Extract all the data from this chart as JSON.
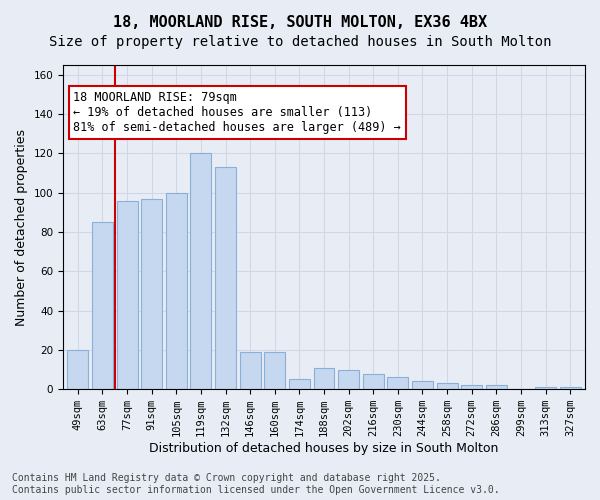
{
  "title_line1": "18, MOORLAND RISE, SOUTH MOLTON, EX36 4BX",
  "title_line2": "Size of property relative to detached houses in South Molton",
  "xlabel": "Distribution of detached houses by size in South Molton",
  "ylabel": "Number of detached properties",
  "categories": [
    "49sqm",
    "63sqm",
    "77sqm",
    "91sqm",
    "105sqm",
    "119sqm",
    "132sqm",
    "146sqm",
    "160sqm",
    "174sqm",
    "188sqm",
    "202sqm",
    "216sqm",
    "230sqm",
    "244sqm",
    "258sqm",
    "272sqm",
    "286sqm",
    "299sqm",
    "313sqm",
    "327sqm"
  ],
  "values": [
    20,
    85,
    96,
    97,
    100,
    120,
    113,
    19,
    19,
    5,
    11,
    10,
    8,
    6,
    4,
    3,
    2,
    2,
    0,
    1,
    1
  ],
  "bar_color": "#c5d8f0",
  "bar_edge_color": "#8ab0d8",
  "vline_x": 1.5,
  "vline_color": "#cc0000",
  "annotation_text": "18 MOORLAND RISE: 79sqm\n← 19% of detached houses are smaller (113)\n81% of semi-detached houses are larger (489) →",
  "annotation_box_color": "#ffffff",
  "annotation_box_edgecolor": "#cc0000",
  "ylim": [
    0,
    165
  ],
  "yticks": [
    0,
    20,
    40,
    60,
    80,
    100,
    120,
    140,
    160
  ],
  "grid_color": "#d0d8e8",
  "bg_color": "#e8edf5",
  "plot_bg_color": "#e8edf5",
  "footer_line1": "Contains HM Land Registry data © Crown copyright and database right 2025.",
  "footer_line2": "Contains public sector information licensed under the Open Government Licence v3.0.",
  "title_fontsize": 11,
  "subtitle_fontsize": 10,
  "tick_fontsize": 7.5,
  "label_fontsize": 9,
  "annotation_fontsize": 8.5,
  "footer_fontsize": 7
}
